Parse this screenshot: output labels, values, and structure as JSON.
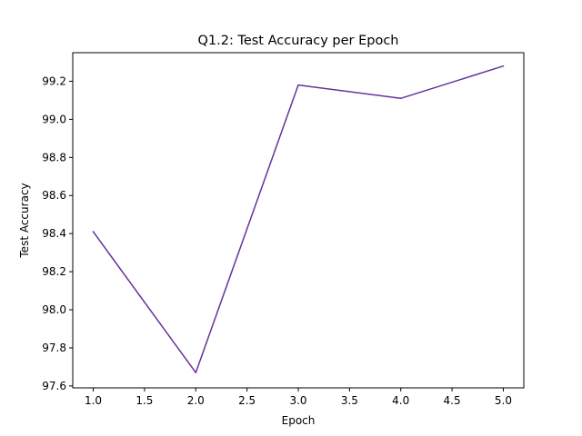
{
  "chart_data": {
    "type": "line",
    "title": "Q1.2: Test Accuracy per Epoch",
    "xlabel": "Epoch",
    "ylabel": "Test Accuracy",
    "x": [
      1,
      2,
      3,
      4,
      5
    ],
    "series": [
      {
        "values": [
          98.41,
          97.67,
          99.18,
          99.11,
          99.28
        ]
      }
    ],
    "xlim": [
      0.8,
      5.2
    ],
    "ylim": [
      97.59,
      99.35
    ],
    "xticks": [
      "1.0",
      "1.5",
      "2.0",
      "2.5",
      "3.0",
      "3.5",
      "4.0",
      "4.5",
      "5.0"
    ],
    "yticks": [
      "97.6",
      "97.8",
      "98.0",
      "98.2",
      "98.4",
      "98.6",
      "98.8",
      "99.0",
      "99.2"
    ],
    "grid": false,
    "legend": "none",
    "colors": {
      "line": "#663399",
      "axes": "#000000",
      "background": "#ffffff"
    }
  }
}
